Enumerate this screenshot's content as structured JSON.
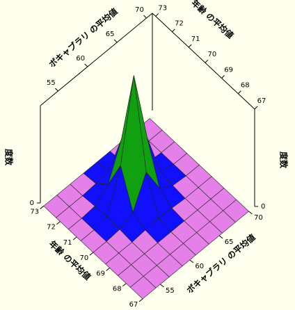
{
  "chart_data": {
    "type": "surface",
    "x_label": "年齢 の平均値",
    "y_label": "ボキャブラリ の平均値",
    "z_label": "度数",
    "x": [
      67,
      67.75,
      68.5,
      69.25,
      70,
      70.75,
      71.5,
      72.25,
      73
    ],
    "y": [
      52,
      54.25,
      56.5,
      58.75,
      61,
      63.25,
      65.5,
      67.75,
      70
    ],
    "z": [
      [
        0,
        0,
        0,
        0,
        0,
        0,
        0,
        0,
        0
      ],
      [
        0,
        0,
        0,
        0,
        0,
        0,
        0,
        0,
        0
      ],
      [
        0,
        0,
        0,
        0,
        0,
        0,
        0,
        0,
        0
      ],
      [
        0,
        0,
        0,
        1,
        2,
        1,
        0,
        0,
        0
      ],
      [
        0,
        0,
        1,
        6,
        30,
        8,
        1,
        0,
        0
      ],
      [
        0,
        0,
        2,
        35,
        100,
        40,
        3,
        0,
        0
      ],
      [
        0,
        0,
        1,
        10,
        38,
        12,
        1,
        0,
        0
      ],
      [
        0,
        0,
        0,
        1,
        3,
        1,
        0,
        0,
        0
      ],
      [
        0,
        0,
        0,
        0,
        0,
        0,
        0,
        0,
        0
      ]
    ],
    "xlim": [
      67,
      73.2
    ],
    "xticks": [
      67,
      68,
      69,
      70,
      71,
      72,
      73
    ],
    "ylim": [
      52,
      71
    ],
    "yticks": [
      55,
      60,
      65,
      70
    ],
    "zlim": [
      0,
      80
    ],
    "zticks": [
      0
    ],
    "colormap": [
      "#e580e8",
      "#1010ff",
      "#40c8ff",
      "#10a010",
      "#f0f000",
      "#ff9000",
      "#ff2000"
    ]
  }
}
